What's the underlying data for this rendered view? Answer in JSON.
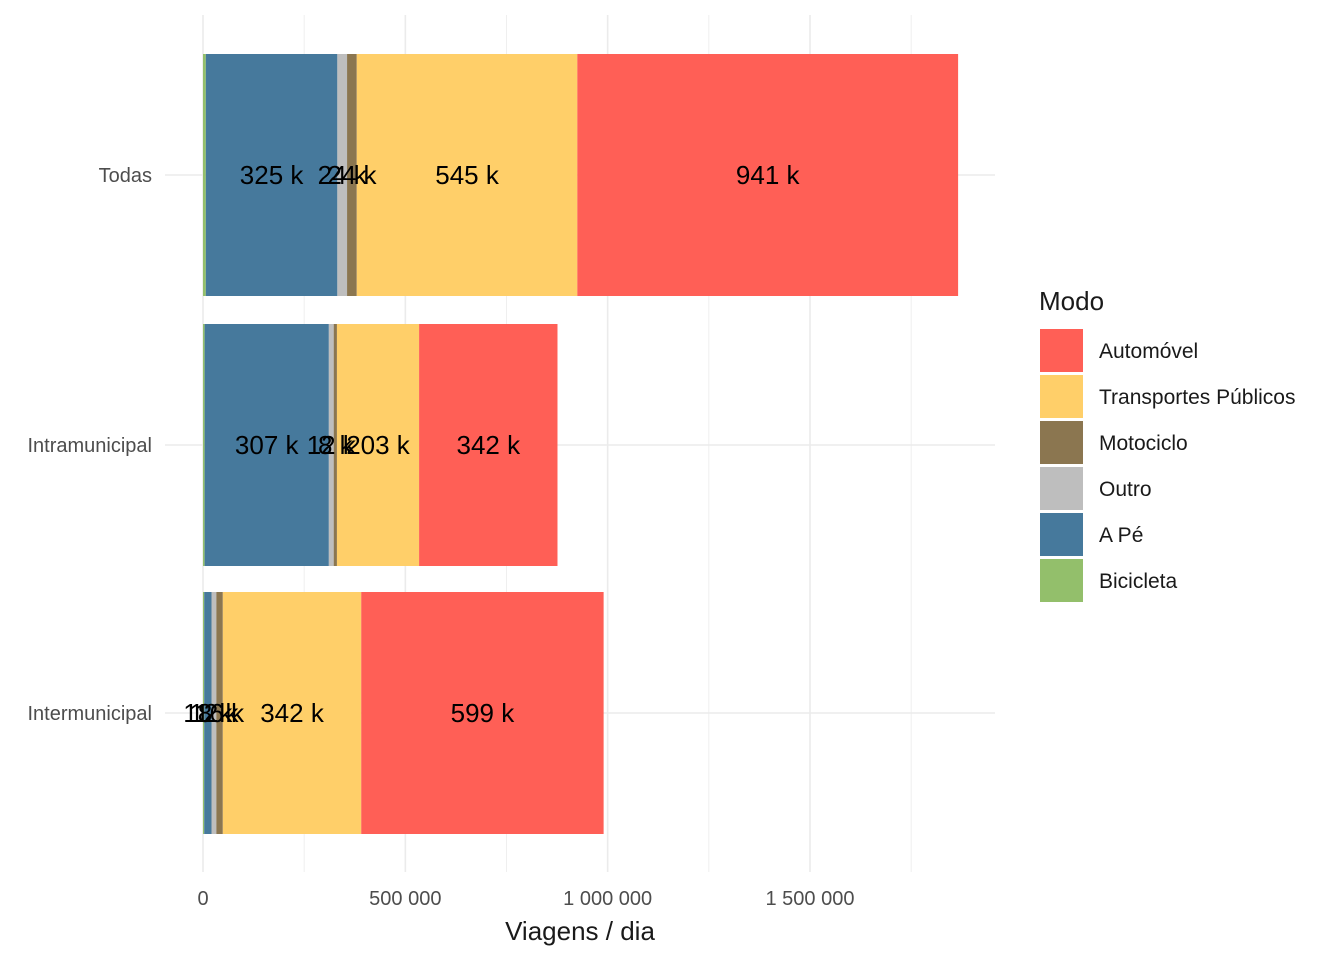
{
  "chart_data": {
    "type": "bar",
    "orientation": "horizontal",
    "stacked": true,
    "title": "",
    "xlabel": "Viagens / dia",
    "ylabel": "",
    "xlim": [
      0,
      1950000
    ],
    "x_ticks": [
      0,
      500000,
      1000000,
      1500000
    ],
    "x_tick_labels": [
      "0",
      "500 000",
      "1 000 000",
      "1 500 000"
    ],
    "grid": true,
    "categories": [
      "Todas",
      "Intramunicipal",
      "Intermunicipal"
    ],
    "stack_order": [
      "Bicicleta",
      "A Pé",
      "Outro",
      "Motociclo",
      "Transportes Públicos",
      "Automóvel"
    ],
    "series": [
      {
        "name": "Bicicleta",
        "color": "#93BF6B",
        "values": [
          7000,
          4000,
          3000
        ],
        "labels": [
          "",
          "",
          ""
        ]
      },
      {
        "name": "A Pé",
        "color": "#46799C",
        "values": [
          325000,
          307000,
          18000
        ],
        "labels": [
          "325 k",
          "307 k",
          "18 k"
        ]
      },
      {
        "name": "Outro",
        "color": "#BEBEBE",
        "values": [
          24000,
          12000,
          12000
        ],
        "labels": [
          "24 k",
          "12 k",
          "12 k"
        ]
      },
      {
        "name": "Motociclo",
        "color": "#8B7650",
        "values": [
          24000,
          8000,
          16000
        ],
        "labels": [
          "24 k",
          "8 k",
          "16 k"
        ]
      },
      {
        "name": "Transportes Públicos",
        "color": "#FFCF69",
        "values": [
          545000,
          203000,
          342000
        ],
        "labels": [
          "545 k",
          "203 k",
          "342 k"
        ]
      },
      {
        "name": "Automóvel",
        "color": "#FF5F56",
        "values": [
          941000,
          342000,
          599000
        ],
        "labels": [
          "941 k",
          "342 k",
          "599 k"
        ]
      }
    ],
    "legend": {
      "title": "Modo",
      "position": "right",
      "entries": [
        "Automóvel",
        "Transportes Públicos",
        "Motociclo",
        "Outro",
        "A Pé",
        "Bicicleta"
      ]
    }
  }
}
